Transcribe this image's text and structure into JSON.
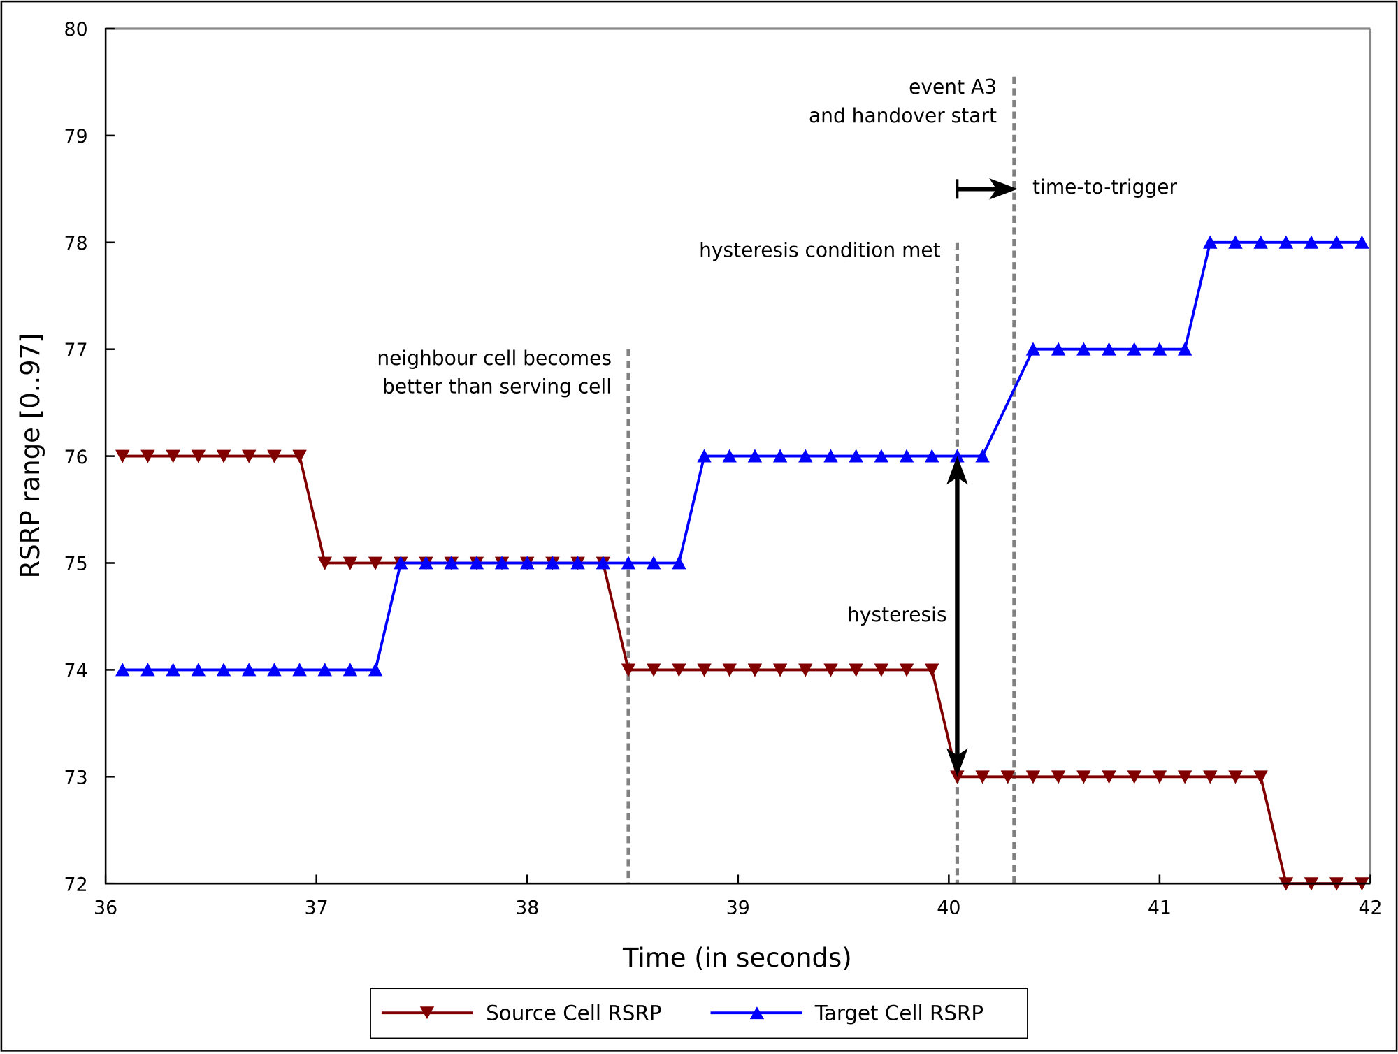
{
  "chart_data": {
    "type": "line",
    "title": "",
    "xlabel": "Time (in seconds)",
    "ylabel": "RSRP range [0..97]",
    "xlim": [
      36,
      42
    ],
    "ylim": [
      72,
      80
    ],
    "xticks": [
      "36",
      "37",
      "38",
      "39",
      "40",
      "41",
      "42"
    ],
    "yticks": [
      "72",
      "73",
      "74",
      "75",
      "76",
      "77",
      "78",
      "79",
      "80"
    ],
    "grid": false,
    "legend_placement": "bottom",
    "series": [
      {
        "name": "Source Cell RSRP",
        "color": "#800000",
        "marker": "triangle-down",
        "x": [
          36.08,
          36.2,
          36.32,
          36.44,
          36.56,
          36.68,
          36.8,
          36.92,
          37.04,
          37.16,
          37.28,
          37.4,
          37.52,
          37.64,
          37.76,
          37.88,
          38.0,
          38.12,
          38.24,
          38.36,
          38.48,
          38.6,
          38.72,
          38.84,
          38.96,
          39.08,
          39.2,
          39.32,
          39.44,
          39.56,
          39.68,
          39.8,
          39.92,
          40.04,
          40.16,
          40.28,
          40.4,
          40.52,
          40.64,
          40.76,
          40.88,
          41.0,
          41.12,
          41.24,
          41.36,
          41.48,
          41.6,
          41.72,
          41.84,
          41.96
        ],
        "y": [
          76,
          76,
          76,
          76,
          76,
          76,
          76,
          76,
          75,
          75,
          75,
          75,
          75,
          75,
          75,
          75,
          75,
          75,
          75,
          75,
          74,
          74,
          74,
          74,
          74,
          74,
          74,
          74,
          74,
          74,
          74,
          74,
          74,
          73,
          73,
          73,
          73,
          73,
          73,
          73,
          73,
          73,
          73,
          73,
          73,
          73,
          72,
          72,
          72,
          72
        ]
      },
      {
        "name": "Target Cell RSRP",
        "color": "#0000ff",
        "marker": "triangle-up",
        "x": [
          36.08,
          36.2,
          36.32,
          36.44,
          36.56,
          36.68,
          36.8,
          36.92,
          37.04,
          37.16,
          37.28,
          37.4,
          37.52,
          37.64,
          37.76,
          37.88,
          38.0,
          38.12,
          38.24,
          38.36,
          38.48,
          38.6,
          38.72,
          38.84,
          38.96,
          39.08,
          39.2,
          39.32,
          39.44,
          39.56,
          39.68,
          39.8,
          39.92,
          40.04,
          40.16,
          40.4,
          40.52,
          40.64,
          40.76,
          40.88,
          41.0,
          41.12,
          41.24,
          41.36,
          41.48,
          41.6,
          41.72,
          41.84,
          41.96
        ],
        "y": [
          74,
          74,
          74,
          74,
          74,
          74,
          74,
          74,
          74,
          74,
          74,
          75,
          75,
          75,
          75,
          75,
          75,
          75,
          75,
          75,
          75,
          75,
          75,
          76,
          76,
          76,
          76,
          76,
          76,
          76,
          76,
          76,
          76,
          76,
          76,
          77,
          77,
          77,
          77,
          77,
          77,
          77,
          78,
          78,
          78,
          78,
          78,
          78,
          78
        ]
      }
    ],
    "annotations": {
      "vlines": [
        {
          "x": 38.48,
          "ymax": 77,
          "color": "#808080",
          "style": "dashed"
        },
        {
          "x": 40.04,
          "ymax": 78,
          "color": "#808080",
          "style": "dashed"
        },
        {
          "x": 40.31,
          "ymax": 79.55,
          "color": "#808080",
          "style": "dashed"
        }
      ],
      "neighbour_text": [
        "neighbour cell becomes",
        "better than serving cell"
      ],
      "hysteresis_met_text": "hysteresis condition met",
      "event_text": [
        "event A3",
        "and handover start"
      ],
      "ttt_text": "time-to-trigger",
      "hysteresis_text": "hysteresis",
      "hysteresis_arrow": {
        "x": 40.04,
        "from": 73,
        "to": 76
      },
      "ttt_arrow": {
        "y": 78.5,
        "from": 40.04,
        "to": 40.31
      }
    }
  }
}
